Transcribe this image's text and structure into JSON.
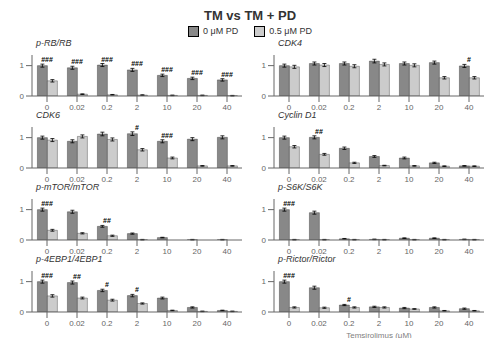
{
  "title": "TM vs TM + PD",
  "chart_data": [
    {
      "type": "bar",
      "title": "p-RB/RB",
      "categories": [
        "0",
        "0.02",
        "0.2",
        "2",
        "10",
        "20",
        "40"
      ],
      "series": [
        {
          "name": "0 μM PD",
          "color": "#888888",
          "values": [
            1.0,
            0.93,
            1.02,
            0.86,
            0.68,
            0.58,
            0.53
          ],
          "errors": [
            0.05,
            0.05,
            0.05,
            0.05,
            0.04,
            0.04,
            0.04
          ]
        },
        {
          "name": "0.5 μM PD",
          "color": "#cccccc",
          "values": [
            0.5,
            0.06,
            0.04,
            0.03,
            0.02,
            0.02,
            0.01
          ],
          "errors": [
            0.04,
            0.01,
            0.01,
            0.01,
            0.01,
            0.01,
            0.01
          ]
        }
      ],
      "ylim": [
        0,
        1.35
      ],
      "yticks": [
        0,
        1
      ],
      "annotations": [
        {
          "category": "0",
          "text": "###"
        },
        {
          "category": "0.02",
          "text": "###"
        },
        {
          "category": "0.2",
          "text": "###"
        },
        {
          "category": "2",
          "text": "###"
        },
        {
          "category": "10",
          "text": "###"
        },
        {
          "category": "20",
          "text": "###"
        },
        {
          "category": "40",
          "text": "###"
        }
      ]
    },
    {
      "type": "bar",
      "title": "CDK4",
      "categories": [
        "0",
        "0.02",
        "0.2",
        "2",
        "10",
        "20",
        "40"
      ],
      "series": [
        {
          "name": "0 μM PD",
          "color": "#888888",
          "values": [
            1.0,
            1.07,
            1.07,
            1.15,
            1.07,
            1.1,
            0.99
          ],
          "errors": [
            0.05,
            0.05,
            0.05,
            0.06,
            0.05,
            0.05,
            0.05
          ]
        },
        {
          "name": "0.5 μM PD",
          "color": "#cccccc",
          "values": [
            0.96,
            1.02,
            0.98,
            1.04,
            1.01,
            0.6,
            0.6
          ],
          "errors": [
            0.05,
            0.05,
            0.05,
            0.05,
            0.05,
            0.04,
            0.04
          ]
        }
      ],
      "ylim": [
        0,
        1.35
      ],
      "yticks": [
        0,
        1
      ],
      "annotations": [
        {
          "category": "40",
          "text": "#"
        }
      ]
    },
    {
      "type": "bar",
      "title": "CDK6",
      "categories": [
        "0",
        "0.02",
        "0.2",
        "2",
        "10",
        "20",
        "40"
      ],
      "series": [
        {
          "name": "0 μM PD",
          "color": "#888888",
          "values": [
            1.0,
            0.88,
            1.12,
            1.13,
            0.88,
            0.95,
            1.01
          ],
          "errors": [
            0.05,
            0.05,
            0.06,
            0.06,
            0.05,
            0.05,
            0.05
          ]
        },
        {
          "name": "0.5 μM PD",
          "color": "#cccccc",
          "values": [
            0.92,
            1.04,
            0.94,
            0.6,
            0.33,
            0.07,
            0.07
          ],
          "errors": [
            0.05,
            0.05,
            0.05,
            0.04,
            0.03,
            0.01,
            0.01
          ]
        }
      ],
      "ylim": [
        0,
        1.35
      ],
      "yticks": [
        0,
        1
      ],
      "annotations": [
        {
          "category": "2",
          "text": "#"
        },
        {
          "category": "10",
          "text": "###"
        }
      ]
    },
    {
      "type": "bar",
      "title": "Cyclin D1",
      "categories": [
        "0",
        "0.02",
        "0.2",
        "2",
        "10",
        "20",
        "40"
      ],
      "series": [
        {
          "name": "0 μM PD",
          "color": "#888888",
          "values": [
            1.0,
            1.01,
            0.65,
            0.38,
            0.33,
            0.17,
            0.07
          ],
          "errors": [
            0.05,
            0.05,
            0.04,
            0.03,
            0.03,
            0.02,
            0.01
          ]
        },
        {
          "name": "0.5 μM PD",
          "color": "#cccccc",
          "values": [
            0.7,
            0.45,
            0.17,
            0.08,
            0.07,
            0.06,
            0.06
          ],
          "errors": [
            0.04,
            0.03,
            0.02,
            0.01,
            0.01,
            0.01,
            0.01
          ]
        }
      ],
      "ylim": [
        0,
        1.35
      ],
      "yticks": [
        0,
        1
      ],
      "annotations": [
        {
          "category": "0.02",
          "text": "##"
        }
      ]
    },
    {
      "type": "bar",
      "title": "p-mTOR/mTOR",
      "categories": [
        "0",
        "0.02",
        "0.2",
        "2",
        "10",
        "20",
        "40"
      ],
      "series": [
        {
          "name": "0 μM PD",
          "color": "#888888",
          "values": [
            1.0,
            0.93,
            0.45,
            0.21,
            0.08,
            0.01,
            0.01
          ],
          "errors": [
            0.05,
            0.05,
            0.03,
            0.02,
            0.01,
            0.01,
            0.01
          ]
        },
        {
          "name": "0.5 μM PD",
          "color": "#cccccc",
          "values": [
            0.32,
            0.22,
            0.14,
            0.01,
            0.0,
            0.0,
            0.0
          ],
          "errors": [
            0.03,
            0.02,
            0.02,
            0.01,
            0.01,
            0.0,
            0.0
          ]
        }
      ],
      "ylim": [
        0,
        1.35
      ],
      "yticks": [
        0,
        1
      ],
      "annotations": [
        {
          "category": "0",
          "text": "###"
        },
        {
          "category": "0.2",
          "text": "##"
        }
      ]
    },
    {
      "type": "bar",
      "title": "p-S6K/S6K",
      "categories": [
        "0",
        "0.02",
        "0.2",
        "2",
        "10",
        "20",
        "40"
      ],
      "series": [
        {
          "name": "0 μM PD",
          "color": "#888888",
          "values": [
            1.0,
            0.9,
            0.04,
            0.02,
            0.06,
            0.06,
            0.02
          ],
          "errors": [
            0.05,
            0.05,
            0.01,
            0.01,
            0.01,
            0.01,
            0.01
          ]
        },
        {
          "name": "0.5 μM PD",
          "color": "#cccccc",
          "values": [
            0.01,
            0.01,
            0.01,
            0.01,
            0.01,
            0.01,
            0.01
          ],
          "errors": [
            0.01,
            0.01,
            0.01,
            0.01,
            0.01,
            0.01,
            0.01
          ]
        }
      ],
      "ylim": [
        0,
        1.35
      ],
      "yticks": [
        0,
        1
      ],
      "annotations": [
        {
          "category": "0",
          "text": "###"
        }
      ]
    },
    {
      "type": "bar",
      "title": "p-4EBP1/4EBP1",
      "categories": [
        "0",
        "0.02",
        "0.2",
        "2",
        "10",
        "20",
        "40"
      ],
      "series": [
        {
          "name": "0 μM PD",
          "color": "#888888",
          "values": [
            1.0,
            0.97,
            0.71,
            0.54,
            0.46,
            0.15,
            0.05
          ],
          "errors": [
            0.05,
            0.05,
            0.04,
            0.04,
            0.03,
            0.02,
            0.01
          ]
        },
        {
          "name": "0.5 μM PD",
          "color": "#cccccc",
          "values": [
            0.53,
            0.46,
            0.39,
            0.28,
            0.05,
            0.02,
            0.02
          ],
          "errors": [
            0.04,
            0.03,
            0.03,
            0.02,
            0.01,
            0.01,
            0.01
          ]
        }
      ],
      "ylim": [
        0,
        1.35
      ],
      "yticks": [
        0,
        1
      ],
      "annotations": [
        {
          "category": "0",
          "text": "###"
        },
        {
          "category": "0.02",
          "text": "##"
        },
        {
          "category": "0.2",
          "text": "#"
        },
        {
          "category": "2",
          "text": "#"
        }
      ]
    },
    {
      "type": "bar",
      "title": "p-Rictor/Rictor",
      "x_label": "Temsirolimus (μM)",
      "categories": [
        "0",
        "0.02",
        "0.2",
        "2",
        "10",
        "20",
        "40"
      ],
      "series": [
        {
          "name": "0 μM PD",
          "color": "#888888",
          "values": [
            1.0,
            0.8,
            0.23,
            0.17,
            0.13,
            0.15,
            0.11
          ],
          "errors": [
            0.05,
            0.05,
            0.02,
            0.02,
            0.02,
            0.02,
            0.02
          ]
        },
        {
          "name": "0.5 μM PD",
          "color": "#cccccc",
          "values": [
            0.15,
            0.14,
            0.15,
            0.15,
            0.1,
            0.04,
            0.04
          ],
          "errors": [
            0.02,
            0.02,
            0.02,
            0.02,
            0.01,
            0.01,
            0.01
          ]
        }
      ],
      "ylim": [
        0,
        1.35
      ],
      "yticks": [
        0,
        1
      ],
      "annotations": [
        {
          "category": "0",
          "text": "###"
        },
        {
          "category": "0.2",
          "text": "#"
        }
      ]
    }
  ]
}
